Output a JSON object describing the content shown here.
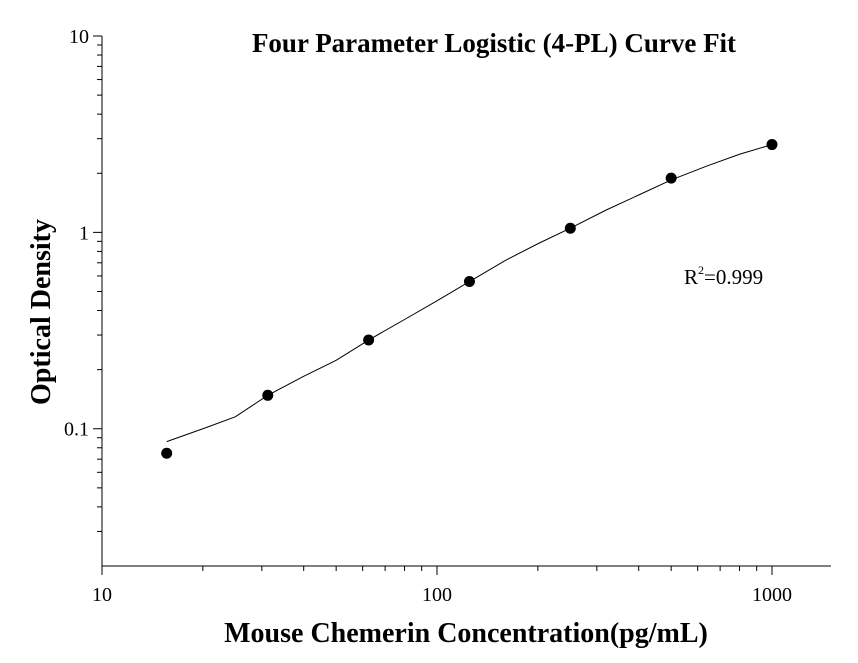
{
  "chart_data": {
    "type": "scatter",
    "title": "Four Parameter Logistic (4-PL) Curve Fit",
    "xlabel": "Mouse Chemerin Concentration(pg/mL)",
    "ylabel": "Optical Density",
    "xscale": "log",
    "yscale": "log",
    "xlim": [
      10,
      1500
    ],
    "ylim": [
      0.02,
      10
    ],
    "xticks": [
      {
        "value": 10,
        "label": "10"
      },
      {
        "value": 100,
        "label": "100"
      },
      {
        "value": 1000,
        "label": "1000"
      }
    ],
    "yticks": [
      {
        "value": 0.1,
        "label": "0.1"
      },
      {
        "value": 1,
        "label": "1"
      },
      {
        "value": 10,
        "label": "10"
      }
    ],
    "series": [
      {
        "x": [
          15.6,
          31.25,
          62.5,
          125,
          250,
          500,
          1000
        ],
        "y": [
          0.075,
          0.148,
          0.283,
          0.562,
          1.05,
          1.89,
          2.8
        ]
      }
    ],
    "fit": {
      "model": "4PL",
      "x_range": [
        15.6,
        1000
      ],
      "points": [
        [
          15.6,
          0.086
        ],
        [
          20,
          0.1
        ],
        [
          25,
          0.115
        ],
        [
          31.25,
          0.148
        ],
        [
          40,
          0.185
        ],
        [
          50,
          0.223
        ],
        [
          62.5,
          0.283
        ],
        [
          80,
          0.36
        ],
        [
          100,
          0.448
        ],
        [
          125,
          0.562
        ],
        [
          160,
          0.72
        ],
        [
          200,
          0.875
        ],
        [
          250,
          1.05
        ],
        [
          320,
          1.3
        ],
        [
          400,
          1.55
        ],
        [
          500,
          1.85
        ],
        [
          640,
          2.18
        ],
        [
          800,
          2.5
        ],
        [
          1000,
          2.8
        ]
      ]
    },
    "annotation": {
      "base": "R",
      "sup": "2",
      "rest": "=0.999"
    }
  }
}
